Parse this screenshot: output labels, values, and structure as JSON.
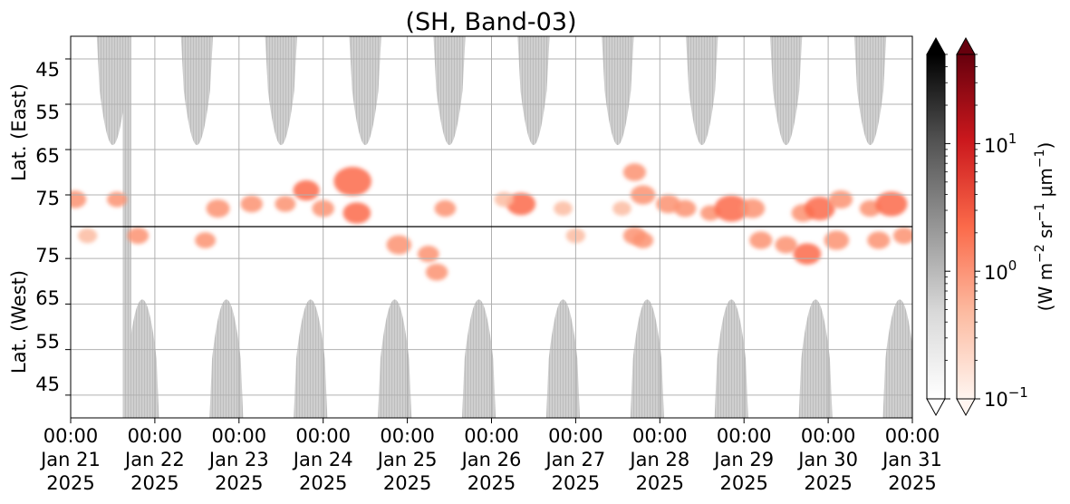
{
  "chart_data": {
    "type": "heatmap",
    "title": "(SH, Band-03)",
    "ylabel_top": "Lat. (East)",
    "ylabel_bottom": "Lat. (West)",
    "y_ticks_top": [
      "45",
      "55",
      "65",
      "75"
    ],
    "y_ticks_bottom": [
      "75",
      "65",
      "55",
      "45"
    ],
    "y_tick_values": [
      45,
      55,
      65,
      75
    ],
    "x_ticks": [
      {
        "time": "00:00",
        "date": "Jan 21",
        "year": "2025"
      },
      {
        "time": "00:00",
        "date": "Jan 22",
        "year": "2025"
      },
      {
        "time": "00:00",
        "date": "Jan 23",
        "year": "2025"
      },
      {
        "time": "00:00",
        "date": "Jan 24",
        "year": "2025"
      },
      {
        "time": "00:00",
        "date": "Jan 25",
        "year": "2025"
      },
      {
        "time": "00:00",
        "date": "Jan 26",
        "year": "2025"
      },
      {
        "time": "00:00",
        "date": "Jan 27",
        "year": "2025"
      },
      {
        "time": "00:00",
        "date": "Jan 28",
        "year": "2025"
      },
      {
        "time": "00:00",
        "date": "Jan 29",
        "year": "2025"
      },
      {
        "time": "00:00",
        "date": "Jan 30",
        "year": "2025"
      },
      {
        "time": "00:00",
        "date": "Jan 31",
        "year": "2025"
      }
    ],
    "x_range": [
      "2025-01-21 00:00",
      "2025-01-31 00:00"
    ],
    "y_range_top": [
      40,
      82
    ],
    "y_range_bottom": [
      82,
      40
    ],
    "grid": true,
    "colorbar": {
      "scale": "log",
      "range": [
        0.1,
        50
      ],
      "ticks": [
        {
          "value": 0.1,
          "base": "10",
          "exp": "−1"
        },
        {
          "value": 1,
          "base": "10",
          "exp": "0"
        },
        {
          "value": 10,
          "base": "10",
          "exp": "1"
        }
      ],
      "label_parts": [
        "(W m",
        "−2",
        " sr",
        "−1",
        " μm",
        "−1",
        ")"
      ],
      "cmaps": [
        "Greys",
        "Reds"
      ]
    },
    "background_colors": {
      "grey": "#c8c8c8",
      "red_max": "#67000d",
      "black_max": "#000000"
    },
    "daylight_bands_east_peaks_day": [
      0.5,
      1.5,
      2.5,
      3.5,
      4.5,
      5.5,
      6.5,
      7.5,
      8.5,
      9.5
    ],
    "daylight_bands_west_peaks_day": [
      0.85,
      1.85,
      2.85,
      3.85,
      4.85,
      5.85,
      6.85,
      7.85,
      8.85,
      9.85
    ],
    "aurora_blobs": [
      {
        "hemi": "east",
        "day": 0.05,
        "lat": 76,
        "value": 0.9
      },
      {
        "hemi": "west",
        "day": 0.2,
        "lat": 80,
        "value": 0.4
      },
      {
        "hemi": "east",
        "day": 0.55,
        "lat": 76,
        "value": 0.5
      },
      {
        "hemi": "west",
        "day": 0.8,
        "lat": 80,
        "value": 0.7
      },
      {
        "hemi": "west",
        "day": 1.6,
        "lat": 79,
        "value": 0.6
      },
      {
        "hemi": "east",
        "day": 1.75,
        "lat": 78,
        "value": 1.0
      },
      {
        "hemi": "east",
        "day": 2.15,
        "lat": 77,
        "value": 0.8
      },
      {
        "hemi": "east",
        "day": 2.55,
        "lat": 77,
        "value": 0.6
      },
      {
        "hemi": "east",
        "day": 2.8,
        "lat": 74,
        "value": 1.4
      },
      {
        "hemi": "east",
        "day": 3.0,
        "lat": 78,
        "value": 0.8
      },
      {
        "hemi": "east",
        "day": 3.35,
        "lat": 72,
        "value": 3.0
      },
      {
        "hemi": "east",
        "day": 3.4,
        "lat": 79,
        "value": 1.6
      },
      {
        "hemi": "west",
        "day": 3.9,
        "lat": 78,
        "value": 1.2
      },
      {
        "hemi": "west",
        "day": 4.35,
        "lat": 72,
        "value": 0.8
      },
      {
        "hemi": "west",
        "day": 4.25,
        "lat": 76,
        "value": 0.7
      },
      {
        "hemi": "east",
        "day": 4.45,
        "lat": 78,
        "value": 0.7
      },
      {
        "hemi": "east",
        "day": 5.35,
        "lat": 77,
        "value": 1.8
      },
      {
        "hemi": "east",
        "day": 5.15,
        "lat": 76,
        "value": 0.4
      },
      {
        "hemi": "east",
        "day": 5.85,
        "lat": 78,
        "value": 0.3
      },
      {
        "hemi": "east",
        "day": 6.55,
        "lat": 78,
        "value": 0.3
      },
      {
        "hemi": "west",
        "day": 6.0,
        "lat": 80,
        "value": 0.4
      },
      {
        "hemi": "west",
        "day": 6.8,
        "lat": 79,
        "value": 0.6
      },
      {
        "hemi": "east",
        "day": 6.7,
        "lat": 70,
        "value": 0.9
      },
      {
        "hemi": "east",
        "day": 6.8,
        "lat": 75,
        "value": 1.2
      },
      {
        "hemi": "west",
        "day": 6.7,
        "lat": 80,
        "value": 0.9
      },
      {
        "hemi": "east",
        "day": 7.1,
        "lat": 77,
        "value": 1.1
      },
      {
        "hemi": "east",
        "day": 7.3,
        "lat": 78,
        "value": 0.8
      },
      {
        "hemi": "east",
        "day": 7.6,
        "lat": 79,
        "value": 0.5
      },
      {
        "hemi": "east",
        "day": 7.85,
        "lat": 78,
        "value": 2.5
      },
      {
        "hemi": "east",
        "day": 8.1,
        "lat": 78,
        "value": 1.2
      },
      {
        "hemi": "west",
        "day": 8.2,
        "lat": 79,
        "value": 0.9
      },
      {
        "hemi": "west",
        "day": 8.5,
        "lat": 78,
        "value": 0.8
      },
      {
        "hemi": "east",
        "day": 8.7,
        "lat": 79,
        "value": 0.9
      },
      {
        "hemi": "west",
        "day": 8.75,
        "lat": 76,
        "value": 1.6
      },
      {
        "hemi": "east",
        "day": 8.9,
        "lat": 78,
        "value": 2.0
      },
      {
        "hemi": "east",
        "day": 9.15,
        "lat": 76,
        "value": 1.0
      },
      {
        "hemi": "west",
        "day": 9.1,
        "lat": 79,
        "value": 1.2
      },
      {
        "hemi": "east",
        "day": 9.5,
        "lat": 78,
        "value": 0.7
      },
      {
        "hemi": "west",
        "day": 9.6,
        "lat": 79,
        "value": 0.9
      },
      {
        "hemi": "east",
        "day": 9.75,
        "lat": 77,
        "value": 2.2
      },
      {
        "hemi": "west",
        "day": 9.9,
        "lat": 80,
        "value": 0.7
      }
    ]
  }
}
